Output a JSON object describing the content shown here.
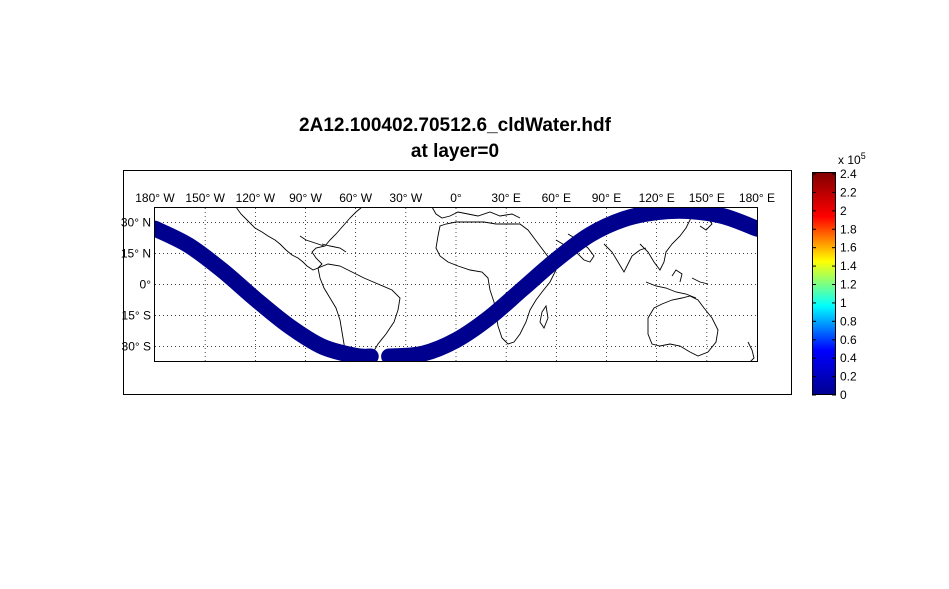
{
  "title": {
    "line1": "2A12.100402.70512.6_cldWater.hdf",
    "line2": "at layer=0"
  },
  "map": {
    "projection": "equirectangular",
    "lon_range": [
      -180,
      180
    ],
    "lat_range": [
      -37,
      37
    ],
    "grid": true,
    "lon_ticks": [
      {
        "value": -180,
        "label": "180° W"
      },
      {
        "value": -150,
        "label": "150° W"
      },
      {
        "value": -120,
        "label": "120° W"
      },
      {
        "value": -90,
        "label": "90° W"
      },
      {
        "value": -60,
        "label": "60° W"
      },
      {
        "value": -30,
        "label": "30° W"
      },
      {
        "value": 0,
        "label": "0°"
      },
      {
        "value": 30,
        "label": "30° E"
      },
      {
        "value": 60,
        "label": "60° E"
      },
      {
        "value": 90,
        "label": "90° E"
      },
      {
        "value": 120,
        "label": "120° E"
      },
      {
        "value": 150,
        "label": "150° E"
      },
      {
        "value": 180,
        "label": "180° E"
      }
    ],
    "lat_ticks": [
      {
        "value": 30,
        "label": "30° N"
      },
      {
        "value": 15,
        "label": "15° N"
      },
      {
        "value": 0,
        "label": "0°"
      },
      {
        "value": -15,
        "label": "15° S"
      },
      {
        "value": -30,
        "label": "30° S"
      }
    ],
    "swath": {
      "color": "#00008f",
      "gap_lon": [
        -51,
        -40
      ],
      "track": [
        [
          -180,
          27
        ],
        [
          -160,
          19
        ],
        [
          -140,
          7
        ],
        [
          -120,
          -7
        ],
        [
          -100,
          -20
        ],
        [
          -80,
          -30
        ],
        [
          -60,
          -34.5
        ],
        [
          -51,
          -34.8
        ],
        [
          -40,
          -34.8
        ],
        [
          -20,
          -33.5
        ],
        [
          0,
          -27
        ],
        [
          20,
          -16
        ],
        [
          40,
          -2
        ],
        [
          60,
          12
        ],
        [
          80,
          24
        ],
        [
          100,
          31.5
        ],
        [
          120,
          35
        ],
        [
          140,
          35.5
        ],
        [
          160,
          33
        ],
        [
          180,
          27
        ]
      ]
    }
  },
  "colorbar": {
    "exponent_label": "x 10",
    "exponent": "5",
    "range": [
      0,
      2.4
    ],
    "tick_labels": [
      "2.4",
      "2.2",
      "2",
      "1.8",
      "1.6",
      "1.4",
      "1.2",
      "1",
      "0.8",
      "0.6",
      "0.4",
      "0.2",
      "0"
    ],
    "colors": [
      "#00008f",
      "#0000ff",
      "#00ffff",
      "#ffff00",
      "#ff0000",
      "#800000"
    ]
  }
}
